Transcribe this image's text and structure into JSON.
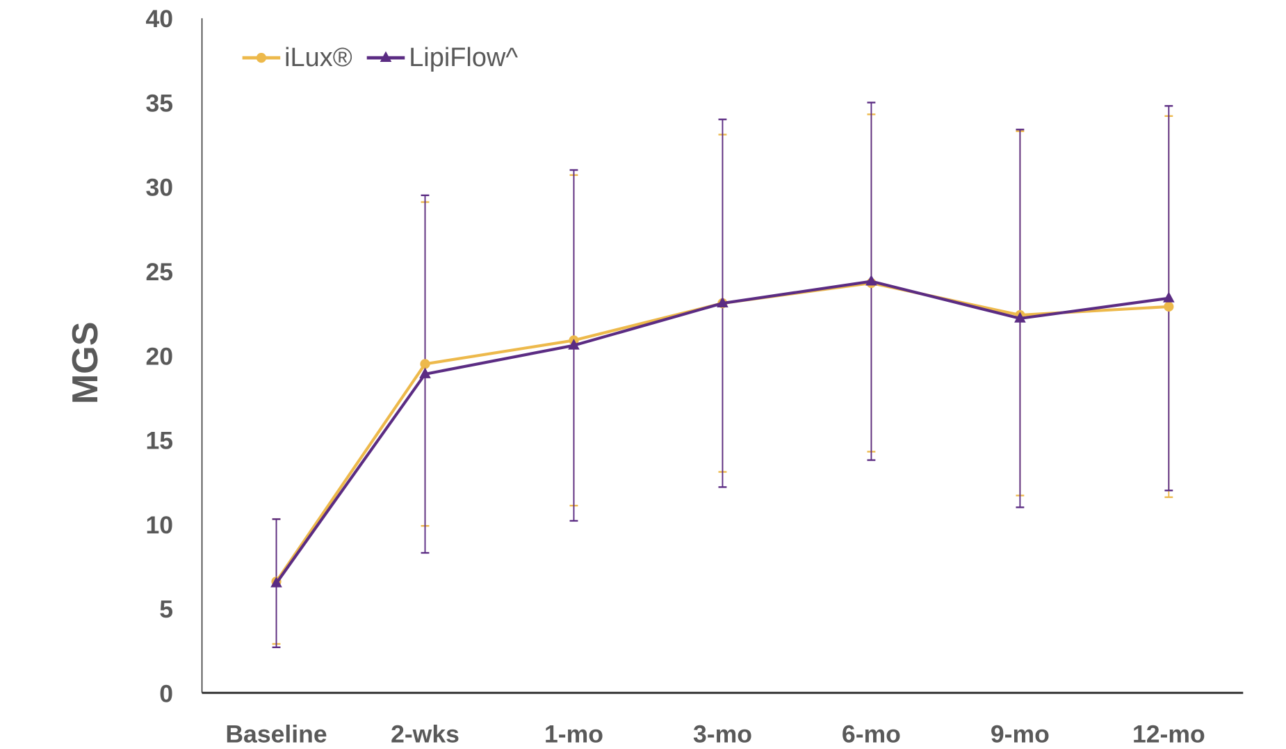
{
  "chart_data": {
    "type": "line",
    "title": "",
    "xlabel": "",
    "ylabel": "MGS",
    "ylim": [
      0,
      40
    ],
    "yticks": [
      "0",
      "5",
      "10",
      "15",
      "20",
      "25",
      "30",
      "35",
      "40"
    ],
    "grid": false,
    "legend_position": "top-left",
    "categories": [
      "Baseline",
      "2-wks",
      "1-mo",
      "3-mo",
      "6-mo",
      "9-mo",
      "12-mo"
    ],
    "series": [
      {
        "name": "iLux®",
        "color": "#EDB94B",
        "marker": "circle",
        "values": [
          6.6,
          19.5,
          20.9,
          23.1,
          24.3,
          22.4,
          22.9
        ],
        "error_low": [
          2.9,
          9.9,
          11.1,
          13.1,
          14.3,
          11.7,
          11.6
        ],
        "error_high": [
          10.3,
          29.1,
          30.7,
          33.1,
          34.3,
          33.3,
          34.2
        ]
      },
      {
        "name": "LipiFlow^",
        "color": "#5B2C83",
        "marker": "triangle",
        "values": [
          6.5,
          18.9,
          20.6,
          23.1,
          24.4,
          22.2,
          23.4
        ],
        "error_low": [
          2.7,
          8.3,
          10.2,
          12.2,
          13.8,
          11.0,
          12.0
        ],
        "error_high": [
          10.3,
          29.5,
          31.0,
          34.0,
          35.0,
          33.4,
          34.8
        ]
      }
    ]
  }
}
